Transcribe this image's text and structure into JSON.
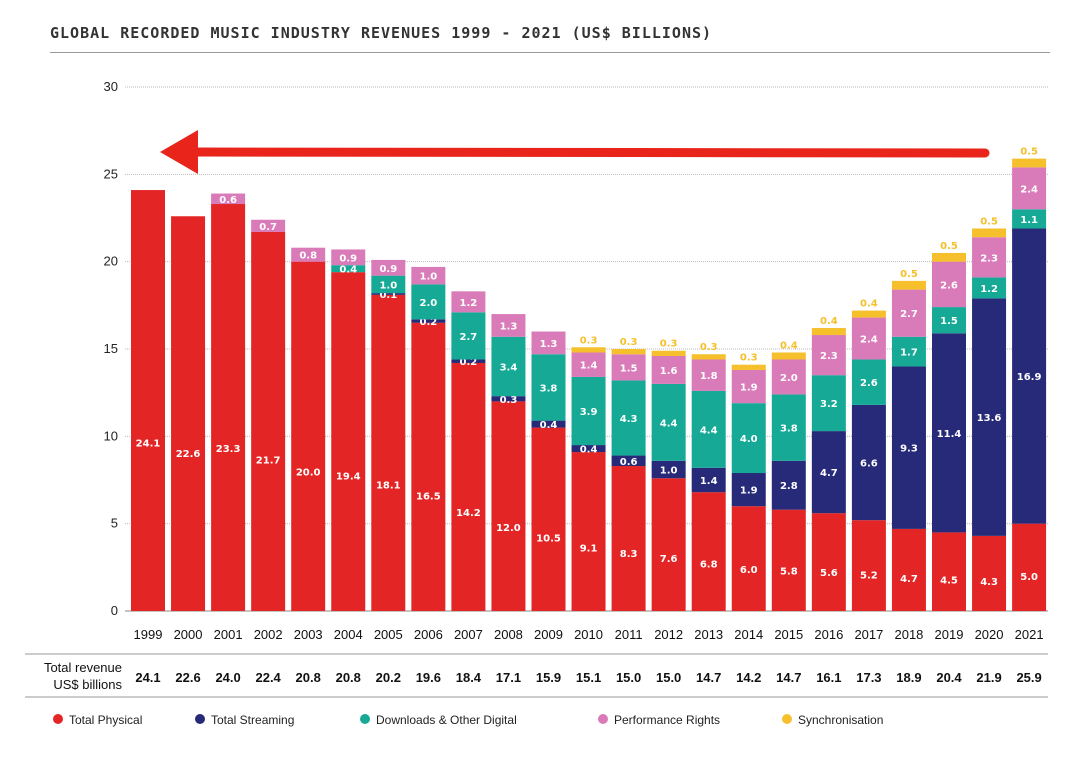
{
  "chart_data": {
    "type": "bar",
    "stacked": true,
    "title": "GLOBAL RECORDED MUSIC INDUSTRY REVENUES 1999 - 2021 (US$ BILLIONS)",
    "ylim": [
      0,
      30
    ],
    "yticks": [
      0,
      5,
      10,
      15,
      20,
      25,
      30
    ],
    "grid": true,
    "legend_position": "bottom",
    "categories": [
      "1999",
      "2000",
      "2001",
      "2002",
      "2003",
      "2004",
      "2005",
      "2006",
      "2007",
      "2008",
      "2009",
      "2010",
      "2011",
      "2012",
      "2013",
      "2014",
      "2015",
      "2016",
      "2017",
      "2018",
      "2019",
      "2020",
      "2021"
    ],
    "series": [
      {
        "name": "Total Physical",
        "color": "#e32526",
        "values": [
          24.1,
          22.6,
          23.3,
          21.7,
          20.0,
          19.4,
          18.1,
          16.5,
          14.2,
          12.0,
          10.5,
          9.1,
          8.3,
          7.6,
          6.8,
          6.0,
          5.8,
          5.6,
          5.2,
          4.7,
          4.5,
          4.3,
          5.0
        ]
      },
      {
        "name": "Total Streaming",
        "color": "#262a78",
        "values": [
          null,
          null,
          null,
          null,
          null,
          null,
          0.1,
          0.2,
          0.2,
          0.3,
          0.4,
          0.4,
          0.6,
          1.0,
          1.4,
          1.9,
          2.8,
          4.7,
          6.6,
          9.3,
          11.4,
          13.6,
          16.9
        ]
      },
      {
        "name": "Downloads & Other Digital",
        "color": "#16aa96",
        "values": [
          null,
          null,
          null,
          null,
          null,
          0.4,
          1.0,
          2.0,
          2.7,
          3.4,
          3.8,
          3.9,
          4.3,
          4.4,
          4.4,
          4.0,
          3.8,
          3.2,
          2.6,
          1.7,
          1.5,
          1.2,
          1.1
        ]
      },
      {
        "name": "Performance Rights",
        "color": "#d97bb8",
        "values": [
          null,
          null,
          0.6,
          0.7,
          0.8,
          0.9,
          0.9,
          1.0,
          1.2,
          1.3,
          1.3,
          1.4,
          1.5,
          1.6,
          1.8,
          1.9,
          2.0,
          2.3,
          2.4,
          2.7,
          2.6,
          2.3,
          2.4
        ]
      },
      {
        "name": "Synchronisation",
        "color": "#f5c02c",
        "values": [
          null,
          null,
          null,
          null,
          null,
          null,
          null,
          null,
          null,
          null,
          null,
          0.3,
          0.3,
          0.3,
          0.3,
          0.3,
          0.4,
          0.4,
          0.4,
          0.5,
          0.5,
          0.5,
          0.5
        ]
      }
    ],
    "totals_label": [
      "Total revenue",
      "US$ billions"
    ],
    "totals": [
      "24.1",
      "22.6",
      "24.0",
      "22.4",
      "20.8",
      "20.8",
      "20.2",
      "19.6",
      "18.4",
      "17.1",
      "15.9",
      "15.1",
      "15.0",
      "15.0",
      "14.7",
      "14.2",
      "14.7",
      "16.1",
      "17.3",
      "18.9",
      "20.4",
      "21.9",
      "25.9"
    ],
    "annotation": {
      "type": "arrow",
      "from": "2021",
      "to": "1999",
      "color": "#e8241b"
    }
  }
}
